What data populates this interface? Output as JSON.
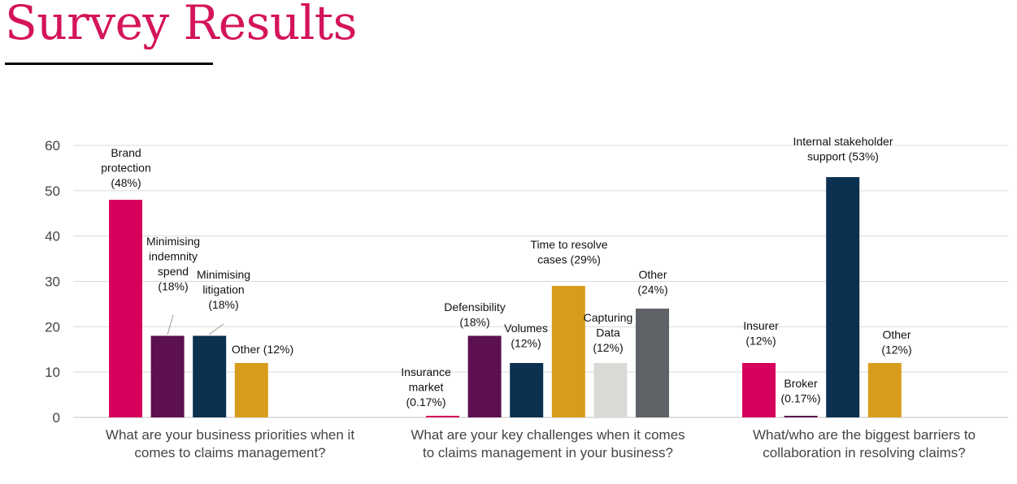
{
  "page": {
    "title": "Survey Results"
  },
  "chart_data": {
    "type": "bar",
    "y_ticks": [
      "0",
      "10",
      "20",
      "30",
      "40",
      "50",
      "60"
    ],
    "ylim": [
      0,
      60
    ],
    "grid": true,
    "colors": {
      "title": "#d4145a",
      "grid": "#d9d9d9",
      "axis": "#bfbfbf"
    },
    "groups": [
      {
        "category": [
          "What are your business priorities when it",
          "comes to claims management?"
        ],
        "bars": [
          {
            "value": 48,
            "color": "#d6005c",
            "label": [
              "Brand",
              "protection",
              "(48%)"
            ]
          },
          {
            "value": 18,
            "color": "#5c1050",
            "label": [
              "Minimising",
              "indemnity",
              "spend",
              "(18%)"
            ]
          },
          {
            "value": 18,
            "color": "#0b3050",
            "label": [
              "Minimising",
              "litigation",
              "(18%)"
            ]
          },
          {
            "value": 12,
            "color": "#d89c1c",
            "label": [
              "Other (12%)"
            ]
          }
        ]
      },
      {
        "category": [
          "What are your key challenges when it comes",
          "to claims management in your business?"
        ],
        "bars": [
          {
            "value": 0.17,
            "color": "#d6005c",
            "label": [
              "Insurance",
              "market",
              "(0.17%)"
            ]
          },
          {
            "value": 18,
            "color": "#5c1050",
            "label": [
              "Defensibility",
              "(18%)"
            ]
          },
          {
            "value": 12,
            "color": "#0b3050",
            "label": [
              "Volumes",
              "(12%)"
            ]
          },
          {
            "value": 29,
            "color": "#d89c1c",
            "label": [
              "Time to resolve",
              "cases (29%)"
            ]
          },
          {
            "value": 12,
            "color": "#d9d9d6",
            "label": [
              "Capturing",
              "Data",
              "(12%)"
            ]
          },
          {
            "value": 24,
            "color": "#5f6368",
            "label": [
              "Other",
              "(24%)"
            ]
          }
        ]
      },
      {
        "category": [
          "What/who are the biggest barriers to",
          "collaboration in resolving claims?"
        ],
        "bars": [
          {
            "value": 12,
            "color": "#d6005c",
            "label": [
              "Insurer",
              "(12%)"
            ]
          },
          {
            "value": 0.17,
            "color": "#5c1050",
            "label": [
              "Broker",
              "(0.17%)"
            ]
          },
          {
            "value": 53,
            "color": "#0b3050",
            "label": [
              "Internal stakeholder",
              "support (53%)"
            ]
          },
          {
            "value": 12,
            "color": "#d89c1c",
            "label": [
              "Other",
              "(12%)"
            ]
          }
        ]
      }
    ]
  }
}
